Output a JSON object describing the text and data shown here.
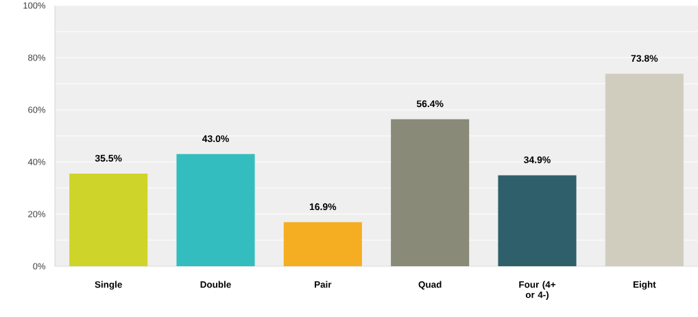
{
  "chart_data": {
    "type": "bar",
    "categories": [
      "Single",
      "Double",
      "Pair",
      "Quad",
      "Four (4+ or 4-)",
      "Eight"
    ],
    "values": [
      35.5,
      43.0,
      16.9,
      56.4,
      34.9,
      73.8
    ],
    "colors": [
      "#cfd42a",
      "#33bdbf",
      "#f5ae22",
      "#8a8a78",
      "#2e5f6b",
      "#d0cdbf"
    ],
    "value_labels": [
      "35.5%",
      "43.0%",
      "16.9%",
      "56.4%",
      "34.9%",
      "73.8%"
    ],
    "ylim": [
      0,
      100
    ],
    "yticks": [
      {
        "value": 0,
        "label": "0%"
      },
      {
        "value": 20,
        "label": "20%"
      },
      {
        "value": 40,
        "label": "40%"
      },
      {
        "value": 60,
        "label": "60%"
      },
      {
        "value": 80,
        "label": "80%"
      },
      {
        "value": 100,
        "label": "100%"
      }
    ],
    "grid": "y"
  }
}
